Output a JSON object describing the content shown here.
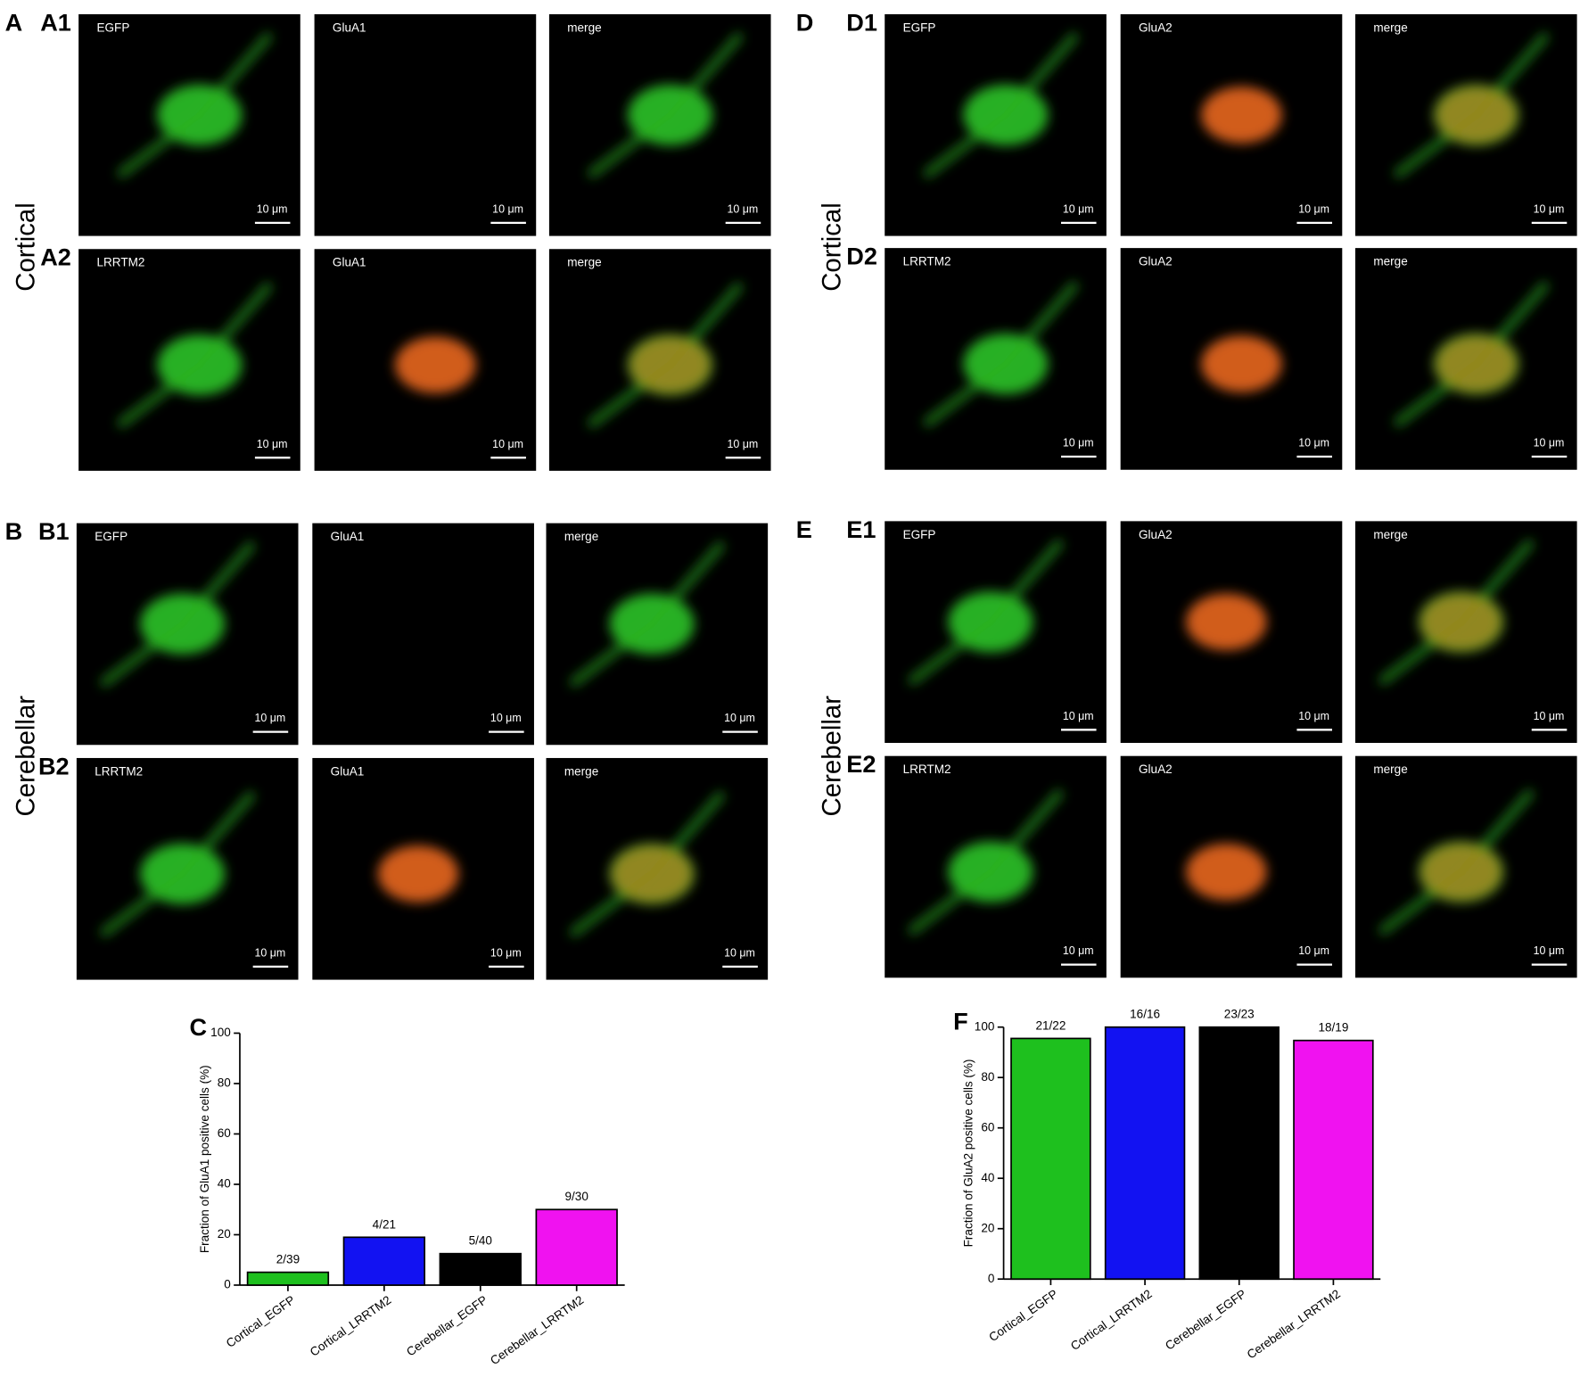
{
  "scale_bar": "10 μm",
  "image_groups": [
    {
      "letter": "A",
      "region": "Cortical",
      "rows": [
        {
          "label": "A1",
          "channels": [
            "EGFP",
            "GluA1",
            "merge"
          ]
        },
        {
          "label": "A2",
          "channels": [
            "LRRTM2",
            "GluA1",
            "merge"
          ]
        }
      ]
    },
    {
      "letter": "B",
      "region": "Cerebellar",
      "rows": [
        {
          "label": "B1",
          "channels": [
            "EGFP",
            "GluA1",
            "merge"
          ]
        },
        {
          "label": "B2",
          "channels": [
            "LRRTM2",
            "GluA1",
            "merge"
          ]
        }
      ]
    },
    {
      "letter": "D",
      "region": "Cortical",
      "rows": [
        {
          "label": "D1",
          "channels": [
            "EGFP",
            "GluA2",
            "merge"
          ]
        },
        {
          "label": "D2",
          "channels": [
            "LRRTM2",
            "GluA2",
            "merge"
          ]
        }
      ]
    },
    {
      "letter": "E",
      "region": "Cerebellar",
      "rows": [
        {
          "label": "E1",
          "channels": [
            "EGFP",
            "GluA2",
            "merge"
          ]
        },
        {
          "label": "E2",
          "channels": [
            "LRRTM2",
            "GluA2",
            "merge"
          ]
        }
      ]
    }
  ],
  "chart_data": [
    {
      "type": "bar",
      "title": "C",
      "y_label": "Fraction of GluA1 positive cells (%)",
      "categories": [
        "Cortical_EGFP",
        "Cortical_LRRTM2",
        "Cerebellar_EGFP",
        "Cerebellar_LRRTM2"
      ],
      "values": [
        5.1,
        19.0,
        12.5,
        30.0
      ],
      "value_labels": [
        "2/39",
        "4/21",
        "5/40",
        "9/30"
      ],
      "colors": [
        "#1ec01e",
        "#1212f2",
        "#000000",
        "#f012f0"
      ],
      "ylim": [
        0,
        100
      ],
      "yticks": [
        0,
        20,
        40,
        60,
        80,
        100
      ]
    },
    {
      "type": "bar",
      "title": "F",
      "y_label": "Fraction of GluA2 positive cells (%)",
      "categories": [
        "Cortical_EGFP",
        "Cortical_LRRTM2",
        "Cerebellar_EGFP",
        "Cerebellar_LRRTM2"
      ],
      "values": [
        95.5,
        100,
        100,
        94.7
      ],
      "value_labels": [
        "21/22",
        "16/16",
        "23/23",
        "18/19"
      ],
      "colors": [
        "#1ec01e",
        "#1212f2",
        "#000000",
        "#f012f0"
      ],
      "ylim": [
        0,
        100
      ],
      "yticks": [
        0,
        20,
        40,
        60,
        80,
        100
      ]
    }
  ]
}
